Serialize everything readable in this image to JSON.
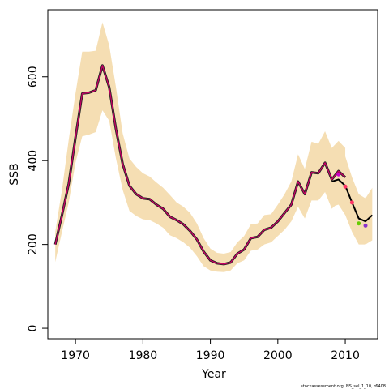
{
  "chart_data": {
    "type": "line",
    "title": "",
    "xlabel": "Year",
    "ylabel": "SSB",
    "xlim": [
      1965.9,
      2014.8
    ],
    "ylim": [
      -25,
      760
    ],
    "xticks": [
      1970,
      1980,
      1990,
      2000,
      2010
    ],
    "yticks": [
      0,
      200,
      400,
      600
    ],
    "grid": false,
    "legend": "none",
    "footnote": "stockassessment.org, NS_sel_1_10, r6408",
    "colors": {
      "band": "#f5deb3",
      "main_line": "#cc0066",
      "retro_line": "#000000",
      "series_2010": "#ff3366",
      "series_2011": "#ff3366",
      "series_2012": "#cc00cc",
      "series_2013": "#66cc00",
      "series_2014": "#8833cc"
    },
    "x": [
      1967,
      1968,
      1969,
      1970,
      1971,
      1972,
      1973,
      1974,
      1975,
      1976,
      1977,
      1978,
      1979,
      1980,
      1981,
      1982,
      1983,
      1984,
      1985,
      1986,
      1987,
      1988,
      1989,
      1990,
      1991,
      1992,
      1993,
      1994,
      1995,
      1996,
      1997,
      1998,
      1999,
      2000,
      2001,
      2002,
      2003,
      2004,
      2005,
      2006,
      2007,
      2008,
      2009,
      2010
    ],
    "series": [
      {
        "values": [
          200,
          270,
          345,
          455,
          560,
          562,
          568,
          627,
          575,
          475,
          392,
          340,
          320,
          310,
          308,
          295,
          285,
          266,
          258,
          248,
          232,
          212,
          183,
          162,
          155,
          153,
          157,
          178,
          188,
          215,
          218,
          235,
          240,
          255,
          275,
          295,
          350,
          320,
          372,
          370,
          395,
          355,
          375,
          360
        ],
        "band_upper": [
          230,
          330,
          450,
          560,
          660,
          660,
          662,
          730,
          675,
          575,
          465,
          405,
          385,
          370,
          362,
          348,
          335,
          318,
          300,
          290,
          275,
          250,
          215,
          190,
          180,
          178,
          182,
          205,
          220,
          248,
          250,
          270,
          272,
          295,
          320,
          350,
          415,
          380,
          445,
          440,
          470,
          430,
          447,
          430
        ],
        "band_lower": [
          158,
          230,
          300,
          395,
          458,
          462,
          468,
          520,
          495,
          405,
          330,
          280,
          268,
          260,
          258,
          250,
          240,
          222,
          215,
          205,
          192,
          172,
          148,
          138,
          135,
          134,
          138,
          155,
          162,
          185,
          188,
          200,
          205,
          220,
          235,
          255,
          290,
          262,
          305,
          305,
          325,
          285,
          300,
          292
        ]
      }
    ],
    "retro_lines": [
      {
        "x": [
          2008,
          2009,
          2010,
          2011,
          2012,
          2013,
          2014
        ],
        "values": [
          350,
          355,
          340,
          300,
          262,
          255,
          270
        ],
        "upper": [
          420,
          425,
          410,
          360,
          320,
          310,
          335
        ],
        "lower": [
          290,
          295,
          270,
          230,
          200,
          200,
          210
        ]
      }
    ],
    "retro_points": [
      {
        "x": 2009,
        "value": 367,
        "color_key": "series_2012"
      },
      {
        "x": 2010,
        "value": 338,
        "color_key": "series_2010"
      },
      {
        "x": 2011,
        "value": 300,
        "color_key": "series_2011"
      },
      {
        "x": 2012,
        "value": 250,
        "color_key": "series_2013"
      },
      {
        "x": 2013,
        "value": 245,
        "color_key": "series_2014"
      }
    ]
  }
}
